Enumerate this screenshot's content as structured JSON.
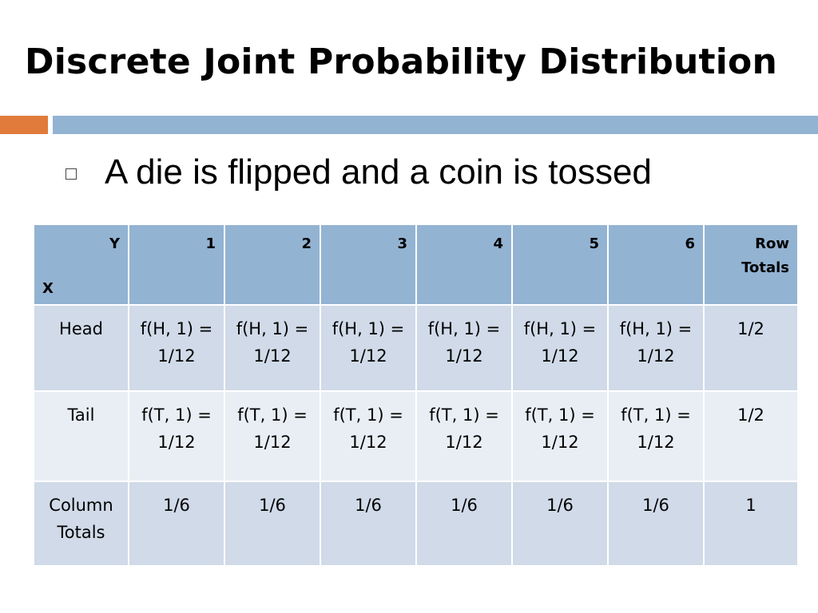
{
  "slide": {
    "title": "Discrete Joint Probability Distribution",
    "bullet": "A die is flipped and a coin is tossed"
  },
  "table": {
    "corner_y": "Y",
    "corner_x": "X",
    "columns": [
      "1",
      "2",
      "3",
      "4",
      "5",
      "6"
    ],
    "row_totals_label_1": "Row",
    "row_totals_label_2": "Totals",
    "rows": [
      {
        "label": "Head",
        "cells": [
          {
            "l1": "f(H, 1) =",
            "l2": "1/12"
          },
          {
            "l1": "f(H, 1) =",
            "l2": "1/12"
          },
          {
            "l1": "f(H, 1) =",
            "l2": "1/12"
          },
          {
            "l1": "f(H, 1) =",
            "l2": "1/12"
          },
          {
            "l1": "f(H, 1) =",
            "l2": "1/12"
          },
          {
            "l1": "f(H, 1) =",
            "l2": "1/12"
          }
        ],
        "total": "1/2"
      },
      {
        "label": "Tail",
        "cells": [
          {
            "l1": "f(T, 1) =",
            "l2": "1/12"
          },
          {
            "l1": "f(T, 1) =",
            "l2": "1/12"
          },
          {
            "l1": "f(T, 1) =",
            "l2": "1/12"
          },
          {
            "l1": "f(T, 1) =",
            "l2": "1/12"
          },
          {
            "l1": "f(T, 1) =",
            "l2": "1/12"
          },
          {
            "l1": "f(T, 1) =",
            "l2": "1/12"
          }
        ],
        "total": "1/2"
      }
    ],
    "column_totals_label_1": "Column",
    "column_totals_label_2": "Totals",
    "column_totals": [
      "1/6",
      "1/6",
      "1/6",
      "1/6",
      "1/6",
      "1/6"
    ],
    "grand_total": "1"
  },
  "colors": {
    "accent_orange": "#e07b3c",
    "accent_blue": "#93b3d2",
    "row_dark": "#d0dae8",
    "row_light": "#e9eef5"
  }
}
